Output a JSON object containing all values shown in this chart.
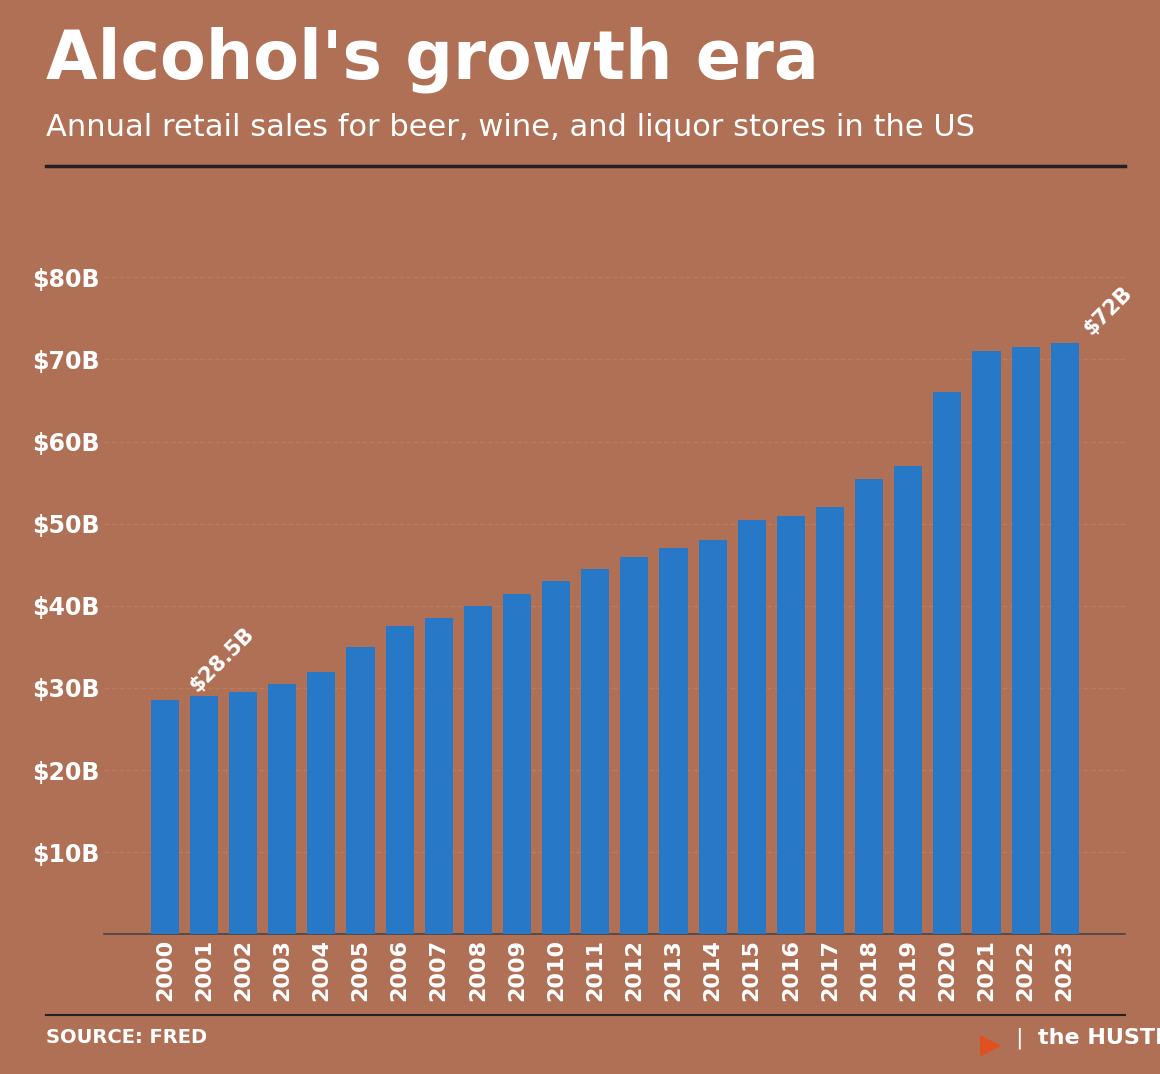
{
  "title": "Alcohol's growth era",
  "subtitle": "Annual retail sales for beer, wine, and liquor stores in the US",
  "source": "SOURCE: FRED",
  "years": [
    2000,
    2001,
    2002,
    2003,
    2004,
    2005,
    2006,
    2007,
    2008,
    2009,
    2010,
    2011,
    2012,
    2013,
    2014,
    2015,
    2016,
    2017,
    2018,
    2019,
    2020,
    2021,
    2022,
    2023
  ],
  "values": [
    28.5,
    29.0,
    29.5,
    30.5,
    32.0,
    35.0,
    37.5,
    38.5,
    40.0,
    41.5,
    43.0,
    44.5,
    46.0,
    47.0,
    48.0,
    50.5,
    51.0,
    52.0,
    55.5,
    57.0,
    66.0,
    71.0,
    71.5,
    72.0
  ],
  "bar_color": "#2878c8",
  "background_color": "#b07055",
  "text_color": "#ffffff",
  "annotation_first": "$28.5B",
  "annotation_last": "$72B",
  "annotation_first_year_idx": 0,
  "annotation_last_year_idx": 23,
  "ylim": [
    0,
    85
  ],
  "yticks": [
    10,
    20,
    30,
    40,
    50,
    60,
    70,
    80
  ],
  "ytick_labels": [
    "$10B",
    "$20B",
    "$30B",
    "$40B",
    "$50B",
    "$60B",
    "$70B",
    "$80B"
  ],
  "grid_color": "#c08060",
  "title_fontsize": 48,
  "subtitle_fontsize": 22,
  "tick_fontsize": 17,
  "annotation_fontsize": 15,
  "source_fontsize": 14,
  "hustle_fontsize": 16
}
